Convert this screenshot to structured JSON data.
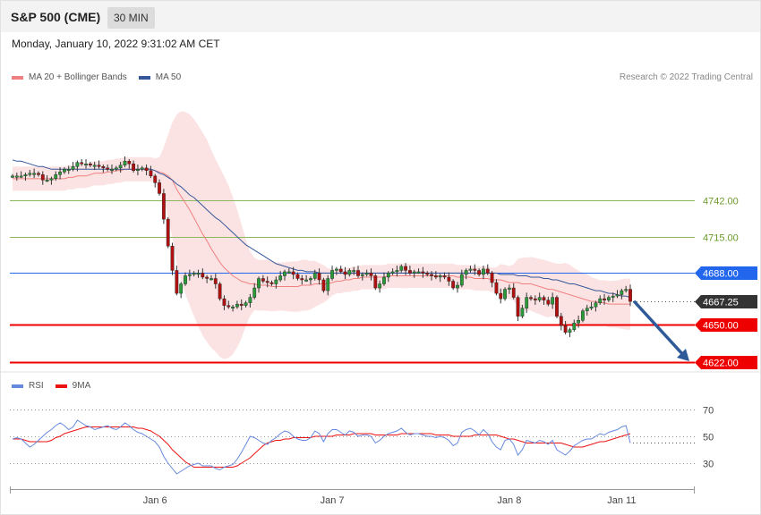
{
  "header": {
    "instrument": "S&P 500 (CME)",
    "timeframe": "30 MIN",
    "datetime": "Monday, January 10, 2022 9:31:02 AM CET"
  },
  "legend": {
    "ma20_label": "MA 20 + Bollinger Bands",
    "ma20_color": "#f08080",
    "ma50_label": "MA 50",
    "ma50_color": "#35579a",
    "credit": "Research © 2022 Trading Central"
  },
  "rsi_legend": {
    "rsi_label": "RSI",
    "rsi_color": "#6688dd",
    "ma_label": "9MA",
    "ma_color": "#ee1111"
  },
  "chart_data": [
    {
      "type": "line",
      "title": "S&P 500 (CME)",
      "x_ticks": [
        "Jan 6",
        "Jan 7",
        "Jan 8",
        "Jan 11"
      ],
      "ylim": [
        4608,
        4800
      ],
      "levels": [
        {
          "label": "4742.00",
          "value": 4742.0,
          "style": "target",
          "color": "#8ab85a"
        },
        {
          "label": "4715.00",
          "value": 4715.0,
          "style": "target",
          "color": "#8ab85a"
        },
        {
          "label": "4688.00",
          "value": 4688.0,
          "style": "pivot",
          "color": "#2266ee"
        },
        {
          "label": "4667.25",
          "value": 4667.25,
          "style": "last",
          "color": "#333333"
        },
        {
          "label": "4650.00",
          "value": 4650.0,
          "style": "support",
          "color": "#ee0000"
        },
        {
          "label": "4622.00",
          "value": 4622.0,
          "style": "support",
          "color": "#ee0000"
        }
      ],
      "close": [
        4760,
        4760,
        4760,
        4761,
        4762,
        4762,
        4761,
        4757,
        4757,
        4758,
        4761,
        4763,
        4765,
        4765,
        4767,
        4770,
        4769,
        4769,
        4768,
        4768,
        4767,
        4766,
        4765,
        4765,
        4766,
        4768,
        4771,
        4769,
        4764,
        4765,
        4766,
        4764,
        4760,
        4755,
        4747,
        4728,
        4708,
        4690,
        4673,
        4680,
        4686,
        4687,
        4688,
        4688,
        4685,
        4684,
        4684,
        4680,
        4669,
        4664,
        4663,
        4663,
        4665,
        4664,
        4666,
        4670,
        4677,
        4684,
        4682,
        4681,
        4680,
        4683,
        4686,
        4689,
        4689,
        4687,
        4684,
        4683,
        4683,
        4684,
        4688,
        4683,
        4675,
        4684,
        4690,
        4691,
        4689,
        4687,
        4690,
        4690,
        4686,
        4687,
        4688,
        4686,
        4677,
        4680,
        4685,
        4688,
        4689,
        4690,
        4693,
        4690,
        4688,
        4689,
        4689,
        4688,
        4687,
        4686,
        4685,
        4686,
        4685,
        4682,
        4677,
        4679,
        4687,
        4690,
        4691,
        4690,
        4687,
        4691,
        4688,
        4681,
        4673,
        4669,
        4676,
        4677,
        4670,
        4656,
        4662,
        4670,
        4669,
        4668,
        4670,
        4668,
        4665,
        4670,
        4656,
        4649,
        4644,
        4646,
        4651,
        4653,
        4660,
        4662,
        4663,
        4666,
        4669,
        4668,
        4670,
        4671,
        4672,
        4675,
        4676,
        4667
      ],
      "ma20": [
        4758,
        4758,
        4758,
        4758,
        4758,
        4758,
        4758,
        4758,
        4758,
        4758,
        4758,
        4758,
        4758,
        4759,
        4759,
        4760,
        4760,
        4760,
        4761,
        4762,
        4762,
        4762,
        4763,
        4763,
        4764,
        4764,
        4765,
        4765,
        4765,
        4765,
        4765,
        4765,
        4765,
        4764,
        4763,
        4762,
        4760,
        4757,
        4750,
        4745,
        4740,
        4735,
        4729,
        4723,
        4717,
        4712,
        4706,
        4701,
        4696,
        4692,
        4689,
        4686,
        4684,
        4682,
        4681,
        4680,
        4680,
        4679,
        4679,
        4679,
        4678,
        4678,
        4678,
        4678,
        4678,
        4678,
        4678,
        4679,
        4679,
        4679,
        4680,
        4680,
        4680,
        4680,
        4681,
        4682,
        4682,
        4683,
        4683,
        4684,
        4684,
        4685,
        4685,
        4685,
        4685,
        4685,
        4685,
        4686,
        4686,
        4686,
        4686,
        4686,
        4686,
        4686,
        4686,
        4686,
        4686,
        4686,
        4686,
        4686,
        4686,
        4686,
        4686,
        4685,
        4685,
        4685,
        4685,
        4684,
        4684,
        4684,
        4684,
        4683,
        4683,
        4683,
        4682,
        4681,
        4681,
        4681,
        4680,
        4680,
        4680,
        4679,
        4678,
        4677,
        4676,
        4676,
        4675,
        4674,
        4673,
        4672,
        4671,
        4670,
        4669,
        4668,
        4667,
        4667,
        4666,
        4666,
        4665,
        4665,
        4665,
        4665,
        4665,
        4665
      ],
      "ma50": [
        4772,
        4771,
        4771,
        4770,
        4769,
        4768,
        4767,
        4767,
        4766,
        4765,
        4765,
        4765,
        4765,
        4765,
        4765,
        4765,
        4765,
        4765,
        4765,
        4765,
        4765,
        4765,
        4765,
        4765,
        4765,
        4765,
        4765,
        4765,
        4765,
        4765,
        4765,
        4765,
        4765,
        4764,
        4762,
        4761,
        4759,
        4757,
        4754,
        4752,
        4749,
        4746,
        4744,
        4741,
        4738,
        4735,
        4732,
        4729,
        4727,
        4724,
        4721,
        4718,
        4715,
        4712,
        4709,
        4707,
        4705,
        4703,
        4701,
        4699,
        4697,
        4695,
        4694,
        4693,
        4692,
        4691,
        4690,
        4690,
        4689,
        4689,
        4689,
        4688,
        4688,
        4688,
        4688,
        4688,
        4688,
        4688,
        4688,
        4688,
        4688,
        4688,
        4688,
        4688,
        4688,
        4688,
        4688,
        4688,
        4688,
        4688,
        4688,
        4688,
        4688,
        4688,
        4688,
        4688,
        4688,
        4688,
        4688,
        4688,
        4688,
        4688,
        4688,
        4688,
        4688,
        4688,
        4688,
        4688,
        4688,
        4688,
        4688,
        4688,
        4688,
        4687,
        4687,
        4687,
        4687,
        4686,
        4686,
        4686,
        4685,
        4685,
        4685,
        4684,
        4684,
        4683,
        4683,
        4682,
        4681,
        4680,
        4680,
        4679,
        4678,
        4677,
        4676,
        4675,
        4675,
        4674,
        4673,
        4673,
        4672,
        4671,
        4671,
        4670
      ]
    },
    {
      "type": "line",
      "title": "RSI",
      "x_ticks": [
        "Jan 6",
        "Jan 7",
        "Jan 8",
        "Jan 11"
      ],
      "ylim": [
        15,
        80
      ],
      "y_ticks": [
        70,
        50,
        30
      ],
      "rsi": [
        48,
        49,
        48,
        45,
        42,
        44,
        47,
        50,
        53,
        55,
        58,
        60,
        58,
        55,
        57,
        62,
        60,
        58,
        57,
        55,
        56,
        57,
        58,
        56,
        55,
        57,
        60,
        58,
        55,
        53,
        52,
        50,
        48,
        46,
        42,
        35,
        30,
        26,
        22,
        24,
        26,
        28,
        29,
        30,
        28,
        28,
        28,
        26,
        25,
        27,
        28,
        29,
        33,
        38,
        44,
        50,
        49,
        47,
        45,
        44,
        47,
        49,
        52,
        54,
        53,
        50,
        48,
        47,
        47,
        49,
        54,
        52,
        46,
        52,
        55,
        55,
        53,
        51,
        54,
        53,
        50,
        51,
        51,
        50,
        45,
        47,
        50,
        52,
        53,
        54,
        56,
        53,
        51,
        52,
        52,
        51,
        50,
        50,
        49,
        50,
        49,
        47,
        43,
        45,
        53,
        55,
        56,
        54,
        51,
        55,
        52,
        46,
        42,
        40,
        47,
        48,
        44,
        36,
        40,
        47,
        46,
        45,
        47,
        46,
        44,
        47,
        40,
        38,
        36,
        39,
        43,
        45,
        47,
        48,
        48,
        50,
        52,
        51,
        53,
        54,
        55,
        57,
        58,
        45
      ],
      "ma9": [
        48,
        48,
        48,
        47,
        46,
        46,
        46,
        46,
        46,
        47,
        49,
        50,
        52,
        53,
        54,
        55,
        56,
        57,
        57,
        57,
        57,
        57,
        57,
        57,
        57,
        57,
        57,
        57,
        57,
        56,
        56,
        55,
        54,
        52,
        50,
        47,
        44,
        40,
        37,
        34,
        31,
        29,
        27,
        27,
        27,
        27,
        27,
        27,
        27,
        27,
        27,
        27,
        28,
        30,
        32,
        34,
        37,
        40,
        43,
        45,
        46,
        47,
        47,
        48,
        48,
        49,
        49,
        49,
        49,
        49,
        50,
        50,
        50,
        50,
        50,
        51,
        51,
        51,
        51,
        52,
        52,
        52,
        52,
        52,
        51,
        51,
        51,
        51,
        51,
        51,
        52,
        52,
        52,
        52,
        52,
        52,
        52,
        52,
        51,
        51,
        51,
        51,
        50,
        50,
        50,
        50,
        50,
        51,
        51,
        51,
        51,
        51,
        51,
        50,
        49,
        48,
        48,
        47,
        46,
        45,
        45,
        45,
        45,
        45,
        45,
        45,
        45,
        45,
        44,
        43,
        42,
        42,
        42,
        43,
        44,
        45,
        46,
        46,
        47,
        48,
        49,
        50,
        51,
        52
      ]
    }
  ]
}
